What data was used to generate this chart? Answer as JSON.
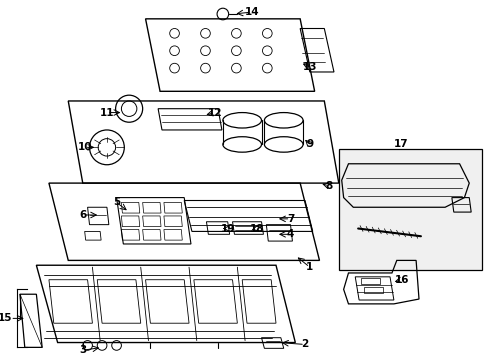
{
  "bg_color": "#ffffff",
  "line_color": "#000000",
  "fig_width": 4.89,
  "fig_height": 3.6,
  "dpi": 100,
  "label_fontsize": 7.5,
  "label_bold": true
}
